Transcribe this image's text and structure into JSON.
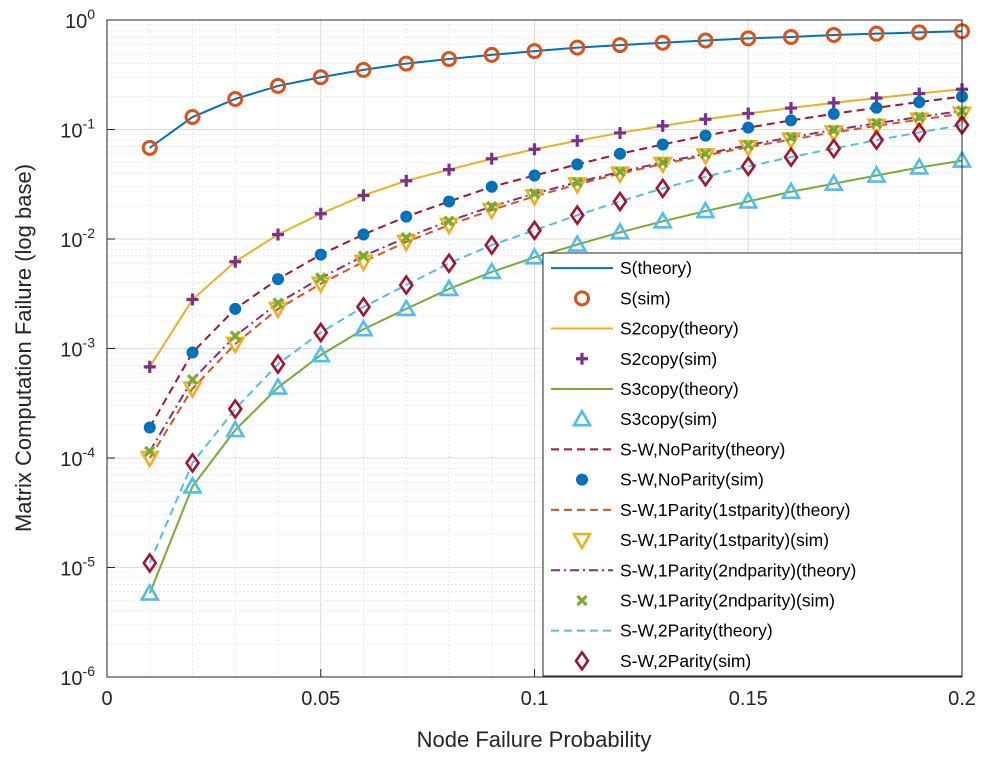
{
  "chart_data": {
    "type": "line",
    "xlabel": "Node Failure Probability",
    "ylabel": "Matrix Computation Failure (log base)",
    "xlim": [
      0,
      0.2
    ],
    "ylim": [
      1e-06,
      1
    ],
    "yscale": "log",
    "grid": true,
    "minor_grid": true,
    "legend_position": "bottom-right",
    "x_ticks": [
      {
        "value": 0,
        "label": "0"
      },
      {
        "value": 0.05,
        "label": "0.05"
      },
      {
        "value": 0.1,
        "label": "0.1"
      },
      {
        "value": 0.15,
        "label": "0.15"
      },
      {
        "value": 0.2,
        "label": "0.2"
      }
    ],
    "y_ticks": [
      {
        "value": 1e-06,
        "base": "10",
        "exp": "-6"
      },
      {
        "value": 1e-05,
        "base": "10",
        "exp": "-5"
      },
      {
        "value": 0.0001,
        "base": "10",
        "exp": "-4"
      },
      {
        "value": 0.001,
        "base": "10",
        "exp": "-3"
      },
      {
        "value": 0.01,
        "base": "10",
        "exp": "-2"
      },
      {
        "value": 0.1,
        "base": "10",
        "exp": "-1"
      },
      {
        "value": 1,
        "base": "10",
        "exp": "0"
      }
    ],
    "x": [
      0.01,
      0.02,
      0.03,
      0.04,
      0.05,
      0.06,
      0.07,
      0.08,
      0.09,
      0.1,
      0.11,
      0.12,
      0.13,
      0.14,
      0.15,
      0.16,
      0.17,
      0.18,
      0.19,
      0.2
    ],
    "series": [
      {
        "name": "S(theory)",
        "style": "line",
        "dash": "solid",
        "color": "#0072BD",
        "values": [
          0.068,
          0.13,
          0.19,
          0.25,
          0.3,
          0.35,
          0.4,
          0.44,
          0.48,
          0.52,
          0.56,
          0.59,
          0.62,
          0.65,
          0.68,
          0.7,
          0.73,
          0.75,
          0.77,
          0.79
        ]
      },
      {
        "name": "S(sim)",
        "style": "marker",
        "marker": "circle",
        "color": "#D95319",
        "values": [
          0.068,
          0.13,
          0.19,
          0.25,
          0.3,
          0.35,
          0.4,
          0.44,
          0.48,
          0.52,
          0.56,
          0.59,
          0.62,
          0.65,
          0.68,
          0.7,
          0.73,
          0.75,
          0.77,
          0.79
        ]
      },
      {
        "name": "S2copy(theory)",
        "style": "line",
        "dash": "solid",
        "color": "#EDB120",
        "values": [
          0.00068,
          0.0028,
          0.0062,
          0.011,
          0.017,
          0.025,
          0.034,
          0.043,
          0.054,
          0.066,
          0.079,
          0.093,
          0.108,
          0.124,
          0.14,
          0.157,
          0.175,
          0.194,
          0.213,
          0.233
        ]
      },
      {
        "name": "S2copy(sim)",
        "style": "marker",
        "marker": "plus",
        "color": "#7E2F8E",
        "values": [
          0.00068,
          0.0028,
          0.0062,
          0.011,
          0.017,
          0.025,
          0.034,
          0.043,
          0.054,
          0.066,
          0.079,
          0.093,
          0.108,
          0.124,
          0.14,
          0.157,
          0.175,
          0.194,
          0.213,
          0.233
        ]
      },
      {
        "name": "S3copy(theory)",
        "style": "line",
        "dash": "solid",
        "color": "#77AC30",
        "values": [
          5.8e-06,
          5.5e-05,
          0.00018,
          0.00044,
          0.00087,
          0.0015,
          0.0023,
          0.0035,
          0.005,
          0.0068,
          0.0089,
          0.0115,
          0.0145,
          0.018,
          0.022,
          0.027,
          0.032,
          0.038,
          0.045,
          0.052
        ]
      },
      {
        "name": "S3copy(sim)",
        "style": "marker",
        "marker": "triangle-up",
        "color": "#4DBEEE",
        "values": [
          5.8e-06,
          5.5e-05,
          0.00018,
          0.00044,
          0.00087,
          0.0015,
          0.0023,
          0.0035,
          0.005,
          0.0068,
          0.0089,
          0.0115,
          0.0145,
          0.018,
          0.022,
          0.027,
          0.032,
          0.038,
          0.045,
          0.052
        ]
      },
      {
        "name": "S-W,NoParity(theory)",
        "style": "line",
        "dash": "dashed",
        "color": "#A2142F",
        "values": [
          0.00019,
          0.00092,
          0.0023,
          0.0043,
          0.0072,
          0.011,
          0.016,
          0.022,
          0.03,
          0.038,
          0.048,
          0.06,
          0.073,
          0.088,
          0.104,
          0.121,
          0.139,
          0.158,
          0.178,
          0.2
        ]
      },
      {
        "name": "S-W,NoParity(sim)",
        "style": "marker",
        "marker": "dot",
        "color": "#0072BD",
        "values": [
          0.00019,
          0.00092,
          0.0023,
          0.0043,
          0.0072,
          0.011,
          0.016,
          0.022,
          0.03,
          0.038,
          0.048,
          0.06,
          0.073,
          0.088,
          0.104,
          0.121,
          0.139,
          0.158,
          0.178,
          0.2
        ]
      },
      {
        "name": "S-W,1Parity(1stparity)(theory)",
        "style": "line",
        "dash": "dashed",
        "color": "#D95319",
        "values": [
          0.0001,
          0.00043,
          0.0011,
          0.0023,
          0.0039,
          0.0062,
          0.0094,
          0.0134,
          0.0184,
          0.0245,
          0.0315,
          0.0395,
          0.0485,
          0.058,
          0.069,
          0.081,
          0.094,
          0.108,
          0.123,
          0.139
        ]
      },
      {
        "name": "S-W,1Parity(1stparity)(sim)",
        "style": "marker",
        "marker": "triangle-down",
        "color": "#EDB120",
        "values": [
          0.0001,
          0.00043,
          0.0011,
          0.0023,
          0.0039,
          0.0062,
          0.0094,
          0.0134,
          0.0184,
          0.0245,
          0.0315,
          0.0395,
          0.0485,
          0.058,
          0.069,
          0.081,
          0.094,
          0.108,
          0.123,
          0.139
        ]
      },
      {
        "name": "S-W,1Parity(2ndparity)(theory)",
        "style": "line",
        "dash": "dashdot",
        "color": "#7E2F8E",
        "values": [
          0.000115,
          0.00052,
          0.0013,
          0.0026,
          0.0044,
          0.007,
          0.0103,
          0.0146,
          0.0198,
          0.026,
          0.033,
          0.041,
          0.05,
          0.06,
          0.072,
          0.085,
          0.099,
          0.114,
          0.13,
          0.148
        ]
      },
      {
        "name": "S-W,1Parity(2ndparity)(sim)",
        "style": "marker",
        "marker": "x",
        "color": "#77AC30",
        "values": [
          0.000115,
          0.00052,
          0.0013,
          0.0026,
          0.0044,
          0.007,
          0.0103,
          0.0146,
          0.0198,
          0.026,
          0.033,
          0.041,
          0.05,
          0.06,
          0.072,
          0.085,
          0.099,
          0.114,
          0.13,
          0.148
        ]
      },
      {
        "name": "S-W,2Parity(theory)",
        "style": "line",
        "dash": "dashed",
        "color": "#4DBEEE",
        "values": [
          1.1e-05,
          9e-05,
          0.00028,
          0.00072,
          0.0014,
          0.0024,
          0.0038,
          0.006,
          0.0088,
          0.012,
          0.0165,
          0.022,
          0.029,
          0.037,
          0.046,
          0.056,
          0.067,
          0.08,
          0.094,
          0.11
        ]
      },
      {
        "name": "S-W,2Parity(sim)",
        "style": "marker",
        "marker": "diamond",
        "color": "#A2142F",
        "values": [
          1.1e-05,
          9e-05,
          0.00028,
          0.00072,
          0.0014,
          0.0024,
          0.0038,
          0.006,
          0.0088,
          0.012,
          0.0165,
          0.022,
          0.029,
          0.037,
          0.046,
          0.056,
          0.067,
          0.08,
          0.094,
          0.11
        ]
      }
    ]
  }
}
